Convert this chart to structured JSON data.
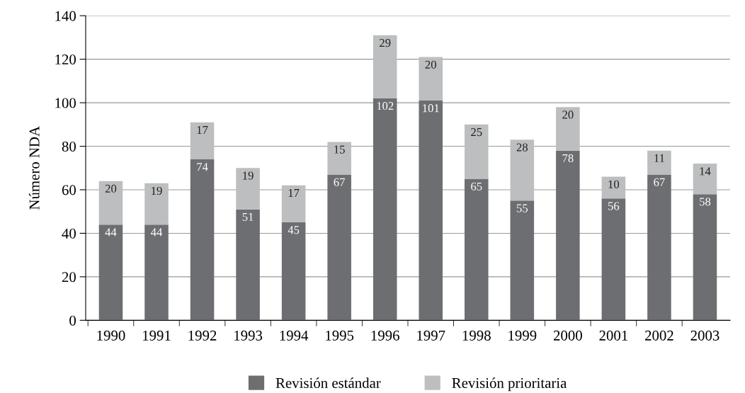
{
  "chart_data": {
    "type": "bar",
    "stacked": true,
    "ylabel": "Número NDA",
    "categories": [
      "1990",
      "1991",
      "1992",
      "1993",
      "1994",
      "1995",
      "1996",
      "1997",
      "1998",
      "1999",
      "2000",
      "2001",
      "2002",
      "2003"
    ],
    "series": [
      {
        "name": "Revisión estándar",
        "color": "#6d6e71",
        "values": [
          44,
          44,
          74,
          51,
          45,
          67,
          102,
          101,
          65,
          55,
          78,
          56,
          67,
          58
        ]
      },
      {
        "name": "Revisión prioritaria",
        "color": "#bcbec0",
        "values": [
          20,
          19,
          17,
          19,
          17,
          15,
          29,
          20,
          25,
          28,
          20,
          10,
          11,
          14
        ]
      }
    ],
    "ylim": [
      0,
      140
    ],
    "yticks": [
      0,
      20,
      40,
      60,
      80,
      100,
      120,
      140
    ],
    "grid": "y",
    "legend": "bottom",
    "data_labels": true
  }
}
